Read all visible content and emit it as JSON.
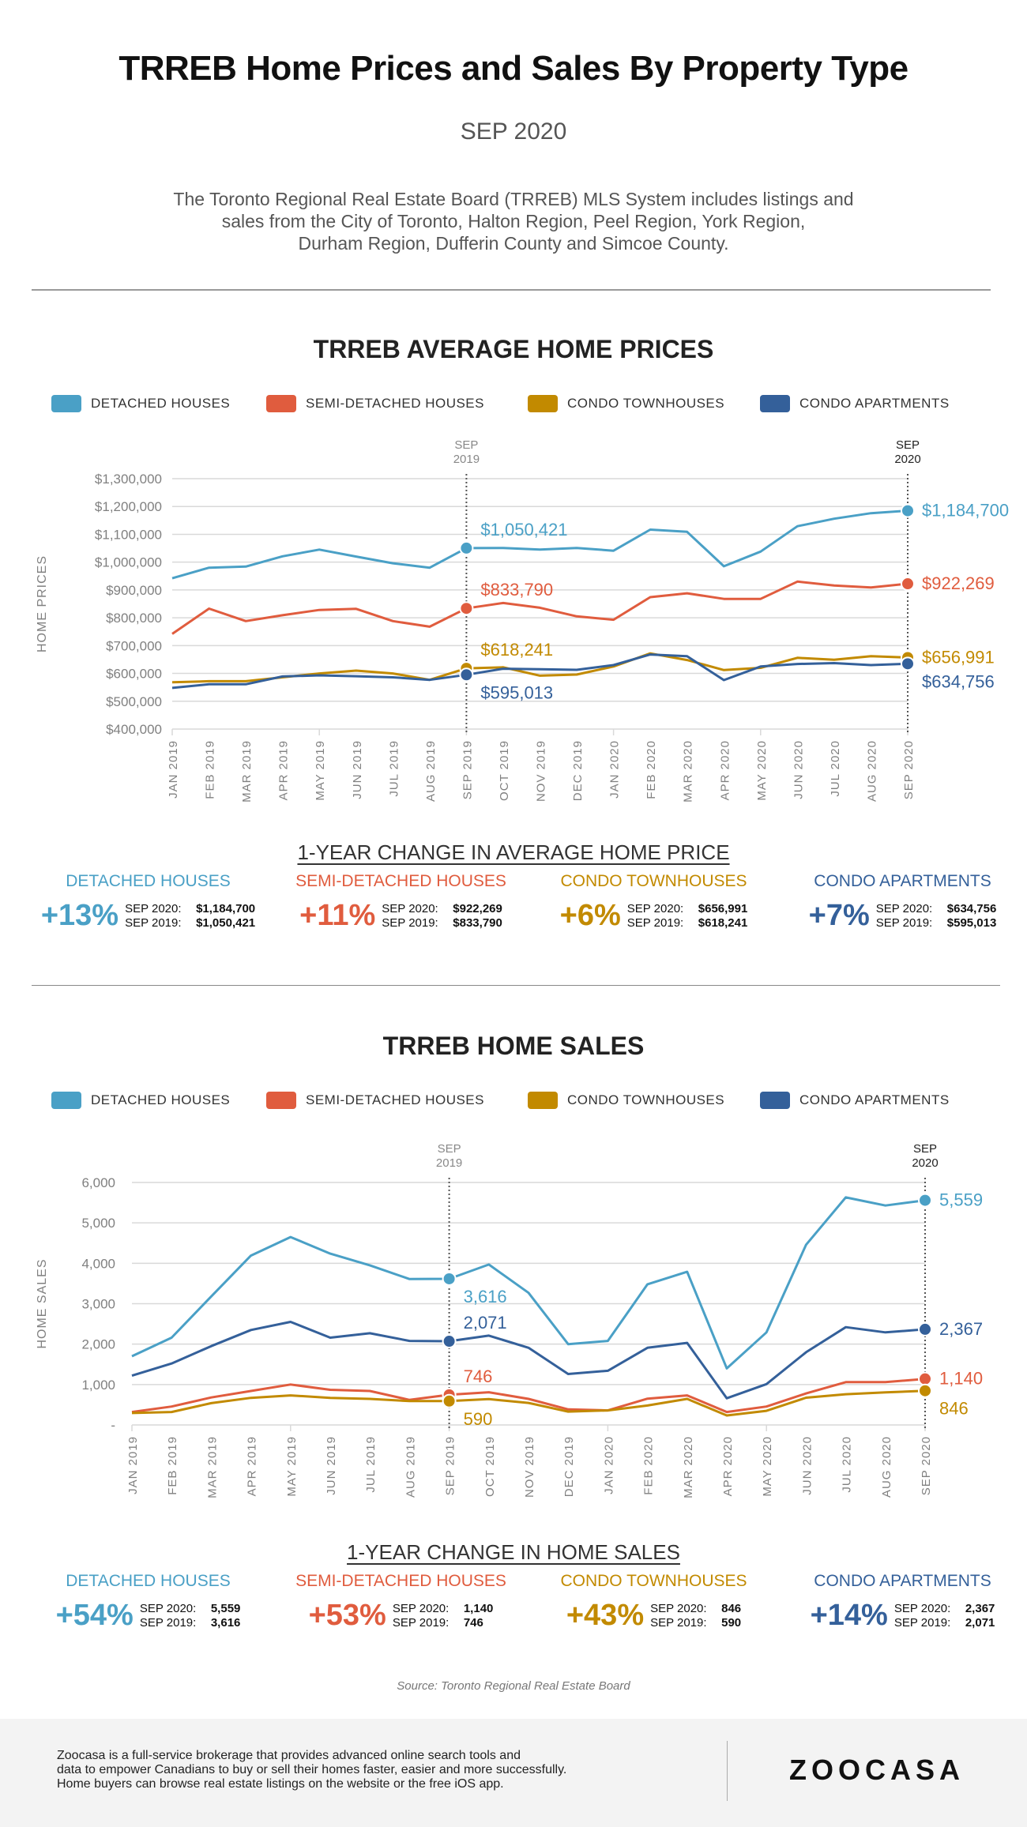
{
  "header": {
    "title": "TRREB Home Prices and Sales By Property Type",
    "subtitle": "SEP 2020",
    "intro_lines": [
      "The Toronto Regional Real Estate Board (TRREB) MLS System includes listings and",
      "sales from the City of Toronto, Halton Region, Peel Region, York Region,",
      "Durham Region, Dufferin County and Simcoe County."
    ]
  },
  "colors": {
    "detached": "#4aa0c6",
    "semi": "#e05c3e",
    "townhouse": "#c28a00",
    "apartment": "#34609a",
    "grid": "#d9d9d9",
    "axis_text": "#808080"
  },
  "legend": [
    {
      "key": "detached",
      "label": "DETACHED HOUSES"
    },
    {
      "key": "semi",
      "label": "SEMI-DETACHED HOUSES"
    },
    {
      "key": "townhouse",
      "label": "CONDO TOWNHOUSES"
    },
    {
      "key": "apartment",
      "label": "CONDO APARTMENTS"
    }
  ],
  "chart_data": [
    {
      "type": "line",
      "title": "TRREB AVERAGE HOME PRICES",
      "xlabel": "",
      "ylabel": "HOME PRICES",
      "ylim": [
        400000,
        1300000
      ],
      "yticks": [
        400000,
        500000,
        600000,
        700000,
        800000,
        900000,
        1000000,
        1100000,
        1200000,
        1300000
      ],
      "ytick_labels": [
        "$400,000",
        "$500,000",
        "$600,000",
        "$700,000",
        "$800,000",
        "$900,000",
        "$1,000,000",
        "$1,100,000",
        "$1,200,000",
        "$1,300,000"
      ],
      "grid": true,
      "legend_position": "top",
      "markers": [
        {
          "index": 8,
          "label_lines": [
            "SEP",
            "2019"
          ]
        },
        {
          "index": 20,
          "label_lines": [
            "SEP",
            "2020"
          ]
        }
      ],
      "categories": [
        "JAN 2019",
        "FEB 2019",
        "MAR 2019",
        "APR 2019",
        "MAY 2019",
        "JUN 2019",
        "JUL 2019",
        "AUG 2019",
        "SEP 2019",
        "OCT 2019",
        "NOV 2019",
        "DEC 2019",
        "JAN 2020",
        "FEB 2020",
        "MAR 2020",
        "APR 2020",
        "MAY 2020",
        "JUN 2020",
        "JUL 2020",
        "AUG 2020",
        "SEP 2020"
      ],
      "series": [
        {
          "key": "detached",
          "name": "DETACHED HOUSES",
          "values": [
            942000,
            980000,
            984000,
            1021000,
            1045000,
            1020000,
            996000,
            980000,
            1050421,
            1051000,
            1045000,
            1051000,
            1041000,
            1117000,
            1109000,
            985000,
            1038000,
            1129000,
            1156000,
            1176000,
            1184700
          ],
          "annotations": [
            {
              "index": 8,
              "text": "$1,050,421",
              "pos": "above-right"
            },
            {
              "index": 20,
              "text": "$1,184,700",
              "pos": "right"
            }
          ]
        },
        {
          "key": "semi",
          "name": "SEMI-DETACHED HOUSES",
          "values": [
            742000,
            833000,
            788000,
            809000,
            828000,
            832000,
            788000,
            768000,
            833790,
            853000,
            836000,
            805000,
            793000,
            874000,
            888000,
            868000,
            868000,
            930000,
            916000,
            909000,
            922269
          ],
          "annotations": [
            {
              "index": 8,
              "text": "$833,790",
              "pos": "above-right"
            },
            {
              "index": 20,
              "text": "$922,269",
              "pos": "right"
            }
          ]
        },
        {
          "key": "townhouse",
          "name": "CONDO TOWNHOUSES",
          "values": [
            568000,
            572000,
            572000,
            586000,
            600000,
            610000,
            600000,
            577000,
            618241,
            622000,
            592000,
            596000,
            625000,
            672000,
            648000,
            612000,
            620000,
            656000,
            649000,
            662000,
            656991
          ],
          "annotations": [
            {
              "index": 8,
              "text": "$618,241",
              "pos": "above-right"
            },
            {
              "index": 20,
              "text": "$656,991",
              "pos": "right"
            }
          ]
        },
        {
          "key": "apartment",
          "name": "CONDO APARTMENTS",
          "values": [
            548000,
            561000,
            561000,
            589000,
            593000,
            590000,
            586000,
            577000,
            595013,
            617000,
            615000,
            613000,
            630000,
            668000,
            662000,
            576000,
            625000,
            634000,
            637000,
            630000,
            634756
          ],
          "annotations": [
            {
              "index": 8,
              "text": "$595,013",
              "pos": "below-right"
            },
            {
              "index": 20,
              "text": "$634,756",
              "pos": "below-right"
            }
          ]
        }
      ]
    },
    {
      "type": "line",
      "title": "TRREB HOME SALES",
      "xlabel": "",
      "ylabel": "HOME SALES",
      "ylim": [
        0,
        6000
      ],
      "yticks": [
        0,
        1000,
        2000,
        3000,
        4000,
        5000,
        6000
      ],
      "ytick_labels": [
        "-",
        "1,000",
        "2,000",
        "3,000",
        "4,000",
        "5,000",
        "6,000"
      ],
      "grid": true,
      "legend_position": "top",
      "markers": [
        {
          "index": 8,
          "label_lines": [
            "SEP",
            "2019"
          ]
        },
        {
          "index": 20,
          "label_lines": [
            "SEP",
            "2020"
          ]
        }
      ],
      "categories": [
        "JAN 2019",
        "FEB 2019",
        "MAR 2019",
        "APR 2019",
        "MAY 2019",
        "JUN 2019",
        "JUL 2019",
        "AUG 2019",
        "SEP 2019",
        "OCT 2019",
        "NOV 2019",
        "DEC 2019",
        "JAN 2020",
        "FEB 2020",
        "MAR 2020",
        "APR 2020",
        "MAY 2020",
        "JUN 2020",
        "JUL 2020",
        "AUG 2020",
        "SEP 2020"
      ],
      "series": [
        {
          "key": "detached",
          "name": "DETACHED HOUSES",
          "values": [
            1700,
            2160,
            3180,
            4190,
            4650,
            4240,
            3950,
            3610,
            3616,
            3970,
            3270,
            2000,
            2080,
            3480,
            3790,
            1400,
            2290,
            4460,
            5630,
            5430,
            5559
          ],
          "annotations": [
            {
              "index": 8,
              "text": "3,616",
              "pos": "below-right"
            },
            {
              "index": 20,
              "text": "5,559",
              "pos": "right"
            }
          ]
        },
        {
          "key": "semi",
          "name": "SEMI-DETACHED HOUSES",
          "values": [
            320,
            455,
            680,
            840,
            1000,
            870,
            840,
            620,
            746,
            810,
            645,
            385,
            360,
            650,
            730,
            320,
            455,
            780,
            1060,
            1060,
            1140
          ],
          "annotations": [
            {
              "index": 8,
              "text": "746",
              "pos": "above-right"
            },
            {
              "index": 20,
              "text": "1,140",
              "pos": "right"
            }
          ]
        },
        {
          "key": "townhouse",
          "name": "CONDO TOWNHOUSES",
          "values": [
            295,
            320,
            540,
            670,
            730,
            670,
            645,
            590,
            590,
            640,
            545,
            330,
            360,
            480,
            645,
            235,
            350,
            675,
            760,
            805,
            846
          ],
          "annotations": [
            {
              "index": 8,
              "text": "590",
              "pos": "below-right"
            },
            {
              "index": 20,
              "text": "846",
              "pos": "below-right"
            }
          ]
        },
        {
          "key": "apartment",
          "name": "CONDO APARTMENTS",
          "values": [
            1220,
            1520,
            1950,
            2350,
            2550,
            2160,
            2270,
            2080,
            2071,
            2210,
            1910,
            1260,
            1340,
            1910,
            2030,
            660,
            1010,
            1800,
            2420,
            2290,
            2367
          ],
          "annotations": [
            {
              "index": 8,
              "text": "2,071",
              "pos": "above-right"
            },
            {
              "index": 20,
              "text": "2,367",
              "pos": "right"
            }
          ]
        }
      ]
    }
  ],
  "price_change": {
    "title": "1-YEAR CHANGE IN AVERAGE HOME PRICE",
    "items": [
      {
        "key": "detached",
        "category": "DETACHED HOUSES",
        "pct": "+13%",
        "label_2020": "SEP 2020:",
        "value_2020": "$1,184,700",
        "label_2019": "SEP 2019:",
        "value_2019": "$1,050,421"
      },
      {
        "key": "semi",
        "category": "SEMI-DETACHED HOUSES",
        "pct": "+11%",
        "label_2020": "SEP 2020:",
        "value_2020": "$922,269",
        "label_2019": "SEP 2019:",
        "value_2019": "$833,790"
      },
      {
        "key": "townhouse",
        "category": "CONDO TOWNHOUSES",
        "pct": "+6%",
        "label_2020": "SEP 2020:",
        "value_2020": "$656,991",
        "label_2019": "SEP 2019:",
        "value_2019": "$618,241"
      },
      {
        "key": "apartment",
        "category": "CONDO APARTMENTS",
        "pct": "+7%",
        "label_2020": "SEP 2020:",
        "value_2020": "$634,756",
        "label_2019": "SEP 2019:",
        "value_2019": "$595,013"
      }
    ]
  },
  "sales_change": {
    "title": "1-YEAR CHANGE IN HOME SALES",
    "items": [
      {
        "key": "detached",
        "category": "DETACHED HOUSES",
        "pct": "+54%",
        "label_2020": "SEP 2020:",
        "value_2020": "5,559",
        "label_2019": "SEP 2019:",
        "value_2019": "3,616"
      },
      {
        "key": "semi",
        "category": "SEMI-DETACHED HOUSES",
        "pct": "+53%",
        "label_2020": "SEP 2020:",
        "value_2020": "1,140",
        "label_2019": "SEP 2019:",
        "value_2019": "746"
      },
      {
        "key": "townhouse",
        "category": "CONDO TOWNHOUSES",
        "pct": "+43%",
        "label_2020": "SEP 2020:",
        "value_2020": "846",
        "label_2019": "SEP 2019:",
        "value_2019": "590"
      },
      {
        "key": "apartment",
        "category": "CONDO APARTMENTS",
        "pct": "+14%",
        "label_2020": "SEP 2020:",
        "value_2020": "2,367",
        "label_2019": "SEP 2019:",
        "value_2019": "2,071"
      }
    ]
  },
  "source": "Source: Toronto Regional Real Estate Board",
  "footer": {
    "text_lines": [
      "Zoocasa is a full-service  brokerage that provides advanced online  search tools and",
      "data to empower Canadians to buy or sell their homes faster, easier and more successfully.",
      "Home buyers can browse real estate listings on the website or the free iOS app."
    ],
    "logo": "ZOOCASA"
  }
}
